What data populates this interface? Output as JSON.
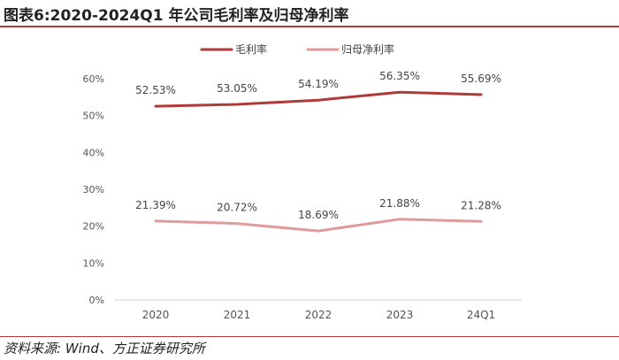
{
  "title": "图表6:2020-2024Q1 年公司毛利率及归母净利率",
  "source": "资料来源: Wind、方正证券研究所",
  "chart_data": {
    "type": "line",
    "categories": [
      "2020",
      "2021",
      "2022",
      "2023",
      "24Q1"
    ],
    "series": [
      {
        "name": "毛利率",
        "values": [
          52.53,
          53.05,
          54.19,
          56.35,
          55.69
        ],
        "labels": [
          "52.53%",
          "53.05%",
          "54.19%",
          "56.35%",
          "55.69%"
        ],
        "color": "#b03a3a"
      },
      {
        "name": "归母净利率",
        "values": [
          21.39,
          20.72,
          18.69,
          21.88,
          21.28
        ],
        "labels": [
          "21.39%",
          "20.72%",
          "18.69%",
          "21.88%",
          "21.28%"
        ],
        "color": "#e09a9a"
      }
    ],
    "yticks": [
      "0%",
      "10%",
      "20%",
      "30%",
      "40%",
      "50%",
      "60%"
    ],
    "ylim": [
      0,
      60
    ],
    "legend": "top-center",
    "grid": false
  }
}
